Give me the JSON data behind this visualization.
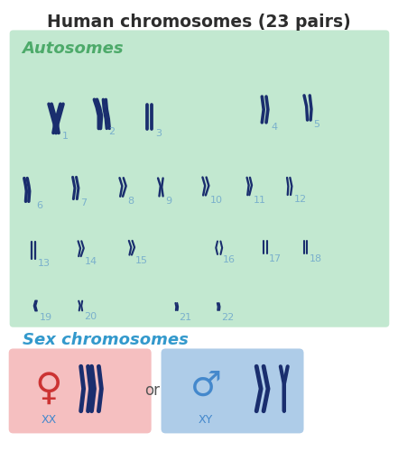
{
  "title": "Human chromosomes (23 pairs)",
  "title_color": "#2d2d2d",
  "title_fontsize": 13.5,
  "bg_color": "#ffffff",
  "autosome_label": "Autosomes",
  "autosome_label_color": "#4daa6a",
  "autosome_box_color": "#c2e8d0",
  "sex_label": "Sex chromosomes",
  "sex_label_color": "#3399cc",
  "chrom_color": "#1a2e6e",
  "num_color": "#7ab0cc",
  "num_fontsize": 8,
  "female_box_color": "#f5bfc0",
  "male_box_color": "#aecce8",
  "female_sym_color": "#cc3333",
  "male_sym_color": "#4488cc",
  "label_color_xx": "#4488cc",
  "or_color": "#555555"
}
